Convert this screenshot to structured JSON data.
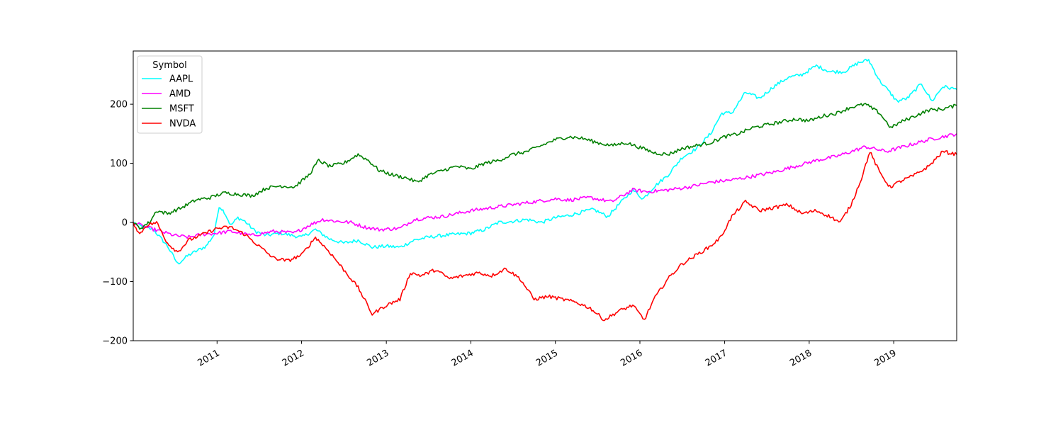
{
  "chart_data": {
    "type": "line",
    "title": "",
    "xlabel": "",
    "ylabel": "",
    "xlim": [
      "2010-01-04",
      "2019-09-30"
    ],
    "ylim": [
      -200,
      290
    ],
    "x_ticks": [
      {
        "date": "2011-01-01",
        "label": "2011"
      },
      {
        "date": "2012-01-01",
        "label": "2012"
      },
      {
        "date": "2013-01-01",
        "label": "2013"
      },
      {
        "date": "2014-01-01",
        "label": "2014"
      },
      {
        "date": "2015-01-01",
        "label": "2015"
      },
      {
        "date": "2016-01-01",
        "label": "2016"
      },
      {
        "date": "2017-01-01",
        "label": "2017"
      },
      {
        "date": "2018-01-01",
        "label": "2018"
      },
      {
        "date": "2019-01-01",
        "label": "2019"
      }
    ],
    "y_ticks": [
      {
        "value": -200,
        "label": "−200"
      },
      {
        "value": -100,
        "label": "−100"
      },
      {
        "value": 0,
        "label": "0"
      },
      {
        "value": 100,
        "label": "100"
      },
      {
        "value": 200,
        "label": "200"
      }
    ],
    "grid": false,
    "legend": {
      "title": "Symbol",
      "placement": "upper-left"
    },
    "series": [
      {
        "name": "AAPL",
        "color": "#00ffff",
        "points": [
          [
            "2010-01-04",
            0
          ],
          [
            "2010-02-15",
            -8
          ],
          [
            "2010-04-01",
            -12
          ],
          [
            "2010-06-01",
            -40
          ],
          [
            "2010-07-15",
            -70
          ],
          [
            "2010-09-01",
            -55
          ],
          [
            "2010-11-15",
            -40
          ],
          [
            "2010-12-20",
            -20
          ],
          [
            "2011-01-10",
            28
          ],
          [
            "2011-02-01",
            18
          ],
          [
            "2011-03-01",
            -5
          ],
          [
            "2011-04-01",
            8
          ],
          [
            "2011-05-01",
            2
          ],
          [
            "2011-06-15",
            -15
          ],
          [
            "2011-08-01",
            -22
          ],
          [
            "2011-10-01",
            -18
          ],
          [
            "2012-01-01",
            -25
          ],
          [
            "2012-03-01",
            -12
          ],
          [
            "2012-05-01",
            -28
          ],
          [
            "2012-07-01",
            -35
          ],
          [
            "2012-09-01",
            -30
          ],
          [
            "2012-11-01",
            -42
          ],
          [
            "2013-01-01",
            -40
          ],
          [
            "2013-03-01",
            -42
          ],
          [
            "2013-05-01",
            -30
          ],
          [
            "2013-07-01",
            -25
          ],
          [
            "2013-09-01",
            -22
          ],
          [
            "2013-11-01",
            -20
          ],
          [
            "2014-01-01",
            -18
          ],
          [
            "2014-03-01",
            -12
          ],
          [
            "2014-05-01",
            0
          ],
          [
            "2014-07-01",
            2
          ],
          [
            "2014-09-01",
            5
          ],
          [
            "2014-11-01",
            0
          ],
          [
            "2015-01-01",
            8
          ],
          [
            "2015-03-01",
            12
          ],
          [
            "2015-05-01",
            18
          ],
          [
            "2015-06-15",
            22
          ],
          [
            "2015-08-15",
            10
          ],
          [
            "2015-10-01",
            30
          ],
          [
            "2015-12-01",
            55
          ],
          [
            "2016-01-15",
            40
          ],
          [
            "2016-03-01",
            60
          ],
          [
            "2016-05-01",
            80
          ],
          [
            "2016-07-01",
            110
          ],
          [
            "2016-09-01",
            125
          ],
          [
            "2016-11-01",
            150
          ],
          [
            "2016-12-20",
            185
          ],
          [
            "2017-02-01",
            185
          ],
          [
            "2017-04-01",
            220
          ],
          [
            "2017-06-01",
            210
          ],
          [
            "2017-08-01",
            230
          ],
          [
            "2017-10-01",
            245
          ],
          [
            "2017-12-01",
            250
          ],
          [
            "2018-02-01",
            265
          ],
          [
            "2018-04-01",
            255
          ],
          [
            "2018-06-01",
            255
          ],
          [
            "2018-08-01",
            270
          ],
          [
            "2018-09-15",
            275
          ],
          [
            "2018-11-01",
            240
          ],
          [
            "2018-12-15",
            220
          ],
          [
            "2019-01-15",
            205
          ],
          [
            "2019-03-01",
            210
          ],
          [
            "2019-05-01",
            235
          ],
          [
            "2019-06-15",
            205
          ],
          [
            "2019-08-01",
            230
          ],
          [
            "2019-09-30",
            225
          ]
        ]
      },
      {
        "name": "AMD",
        "color": "#ff00ff",
        "points": [
          [
            "2010-01-04",
            0
          ],
          [
            "2010-03-01",
            -8
          ],
          [
            "2010-05-01",
            -15
          ],
          [
            "2010-07-01",
            -22
          ],
          [
            "2010-09-01",
            -25
          ],
          [
            "2010-11-01",
            -20
          ],
          [
            "2011-01-01",
            -18
          ],
          [
            "2011-03-01",
            -15
          ],
          [
            "2011-06-01",
            -22
          ],
          [
            "2011-09-01",
            -15
          ],
          [
            "2011-12-01",
            -18
          ],
          [
            "2012-02-01",
            -5
          ],
          [
            "2012-04-01",
            5
          ],
          [
            "2012-06-01",
            2
          ],
          [
            "2012-08-01",
            0
          ],
          [
            "2012-10-01",
            -8
          ],
          [
            "2012-12-01",
            -12
          ],
          [
            "2013-03-01",
            -10
          ],
          [
            "2013-05-01",
            5
          ],
          [
            "2013-07-01",
            8
          ],
          [
            "2013-09-01",
            10
          ],
          [
            "2013-11-01",
            15
          ],
          [
            "2014-01-01",
            20
          ],
          [
            "2014-04-01",
            25
          ],
          [
            "2014-07-01",
            30
          ],
          [
            "2014-10-01",
            35
          ],
          [
            "2015-01-01",
            40
          ],
          [
            "2015-03-01",
            38
          ],
          [
            "2015-06-01",
            42
          ],
          [
            "2015-09-01",
            35
          ],
          [
            "2015-12-01",
            55
          ],
          [
            "2016-02-01",
            52
          ],
          [
            "2016-05-01",
            55
          ],
          [
            "2016-08-01",
            60
          ],
          [
            "2016-11-01",
            68
          ],
          [
            "2017-02-01",
            72
          ],
          [
            "2017-05-01",
            78
          ],
          [
            "2017-08-01",
            85
          ],
          [
            "2017-11-01",
            95
          ],
          [
            "2018-02-01",
            105
          ],
          [
            "2018-05-01",
            112
          ],
          [
            "2018-09-01",
            128
          ],
          [
            "2018-12-01",
            120
          ],
          [
            "2019-03-01",
            130
          ],
          [
            "2019-06-01",
            140
          ],
          [
            "2019-09-30",
            150
          ]
        ]
      },
      {
        "name": "MSFT",
        "color": "#008000",
        "points": [
          [
            "2010-01-04",
            0
          ],
          [
            "2010-02-01",
            -10
          ],
          [
            "2010-03-15",
            0
          ],
          [
            "2010-04-15",
            20
          ],
          [
            "2010-06-01",
            15
          ],
          [
            "2010-08-01",
            25
          ],
          [
            "2010-10-01",
            38
          ],
          [
            "2010-12-01",
            42
          ],
          [
            "2011-02-01",
            50
          ],
          [
            "2011-04-01",
            48
          ],
          [
            "2011-06-01",
            45
          ],
          [
            "2011-08-01",
            58
          ],
          [
            "2011-10-01",
            62
          ],
          [
            "2011-12-01",
            60
          ],
          [
            "2012-02-01",
            80
          ],
          [
            "2012-03-15",
            105
          ],
          [
            "2012-05-01",
            95
          ],
          [
            "2012-07-01",
            100
          ],
          [
            "2012-09-01",
            115
          ],
          [
            "2012-10-15",
            105
          ],
          [
            "2012-12-01",
            88
          ],
          [
            "2013-02-01",
            80
          ],
          [
            "2013-04-01",
            75
          ],
          [
            "2013-05-15",
            68
          ],
          [
            "2013-07-01",
            80
          ],
          [
            "2013-09-01",
            88
          ],
          [
            "2013-11-01",
            95
          ],
          [
            "2014-01-01",
            90
          ],
          [
            "2014-03-01",
            100
          ],
          [
            "2014-05-01",
            105
          ],
          [
            "2014-07-01",
            115
          ],
          [
            "2014-09-01",
            120
          ],
          [
            "2014-11-01",
            130
          ],
          [
            "2015-01-01",
            140
          ],
          [
            "2015-03-01",
            145
          ],
          [
            "2015-05-01",
            142
          ],
          [
            "2015-07-01",
            135
          ],
          [
            "2015-09-01",
            130
          ],
          [
            "2015-11-01",
            135
          ],
          [
            "2016-01-15",
            125
          ],
          [
            "2016-03-01",
            118
          ],
          [
            "2016-05-01",
            115
          ],
          [
            "2016-07-01",
            125
          ],
          [
            "2016-09-01",
            130
          ],
          [
            "2016-11-01",
            135
          ],
          [
            "2017-01-01",
            145
          ],
          [
            "2017-03-01",
            150
          ],
          [
            "2017-05-01",
            160
          ],
          [
            "2017-07-01",
            165
          ],
          [
            "2017-09-01",
            170
          ],
          [
            "2017-11-01",
            175
          ],
          [
            "2018-01-01",
            172
          ],
          [
            "2018-03-01",
            180
          ],
          [
            "2018-05-01",
            185
          ],
          [
            "2018-07-01",
            195
          ],
          [
            "2018-09-01",
            200
          ],
          [
            "2018-11-01",
            185
          ],
          [
            "2018-12-20",
            160
          ],
          [
            "2019-02-01",
            170
          ],
          [
            "2019-04-01",
            180
          ],
          [
            "2019-06-01",
            190
          ],
          [
            "2019-08-01",
            192
          ],
          [
            "2019-09-30",
            198
          ]
        ]
      },
      {
        "name": "NVDA",
        "color": "#ff0000",
        "points": [
          [
            "2010-01-04",
            0
          ],
          [
            "2010-02-01",
            -20
          ],
          [
            "2010-03-01",
            -5
          ],
          [
            "2010-04-15",
            0
          ],
          [
            "2010-06-01",
            -35
          ],
          [
            "2010-07-15",
            -50
          ],
          [
            "2010-09-01",
            -30
          ],
          [
            "2010-11-01",
            -20
          ],
          [
            "2011-01-01",
            -10
          ],
          [
            "2011-03-01",
            -8
          ],
          [
            "2011-05-01",
            -20
          ],
          [
            "2011-07-01",
            -40
          ],
          [
            "2011-09-01",
            -60
          ],
          [
            "2011-11-01",
            -65
          ],
          [
            "2012-01-01",
            -55
          ],
          [
            "2012-03-01",
            -25
          ],
          [
            "2012-05-01",
            -50
          ],
          [
            "2012-07-01",
            -80
          ],
          [
            "2012-09-01",
            -110
          ],
          [
            "2012-11-01",
            -155
          ],
          [
            "2013-01-01",
            -140
          ],
          [
            "2013-03-01",
            -130
          ],
          [
            "2013-04-15",
            -85
          ],
          [
            "2013-06-01",
            -90
          ],
          [
            "2013-08-01",
            -80
          ],
          [
            "2013-10-01",
            -95
          ],
          [
            "2013-12-01",
            -90
          ],
          [
            "2014-02-01",
            -85
          ],
          [
            "2014-04-01",
            -90
          ],
          [
            "2014-06-01",
            -78
          ],
          [
            "2014-08-01",
            -95
          ],
          [
            "2014-10-01",
            -130
          ],
          [
            "2014-12-01",
            -125
          ],
          [
            "2015-02-01",
            -130
          ],
          [
            "2015-04-01",
            -135
          ],
          [
            "2015-06-01",
            -145
          ],
          [
            "2015-08-01",
            -165
          ],
          [
            "2015-10-01",
            -150
          ],
          [
            "2015-12-01",
            -140
          ],
          [
            "2016-01-20",
            -165
          ],
          [
            "2016-03-01",
            -130
          ],
          [
            "2016-05-01",
            -95
          ],
          [
            "2016-07-01",
            -70
          ],
          [
            "2016-09-01",
            -55
          ],
          [
            "2016-11-01",
            -40
          ],
          [
            "2016-12-15",
            -25
          ],
          [
            "2017-02-01",
            10
          ],
          [
            "2017-04-01",
            35
          ],
          [
            "2017-06-01",
            20
          ],
          [
            "2017-08-01",
            25
          ],
          [
            "2017-10-01",
            30
          ],
          [
            "2017-12-01",
            15
          ],
          [
            "2018-02-01",
            20
          ],
          [
            "2018-04-01",
            10
          ],
          [
            "2018-05-15",
            0
          ],
          [
            "2018-07-01",
            30
          ],
          [
            "2018-08-15",
            75
          ],
          [
            "2018-09-20",
            120
          ],
          [
            "2018-11-01",
            85
          ],
          [
            "2018-12-15",
            60
          ],
          [
            "2019-02-01",
            70
          ],
          [
            "2019-04-01",
            80
          ],
          [
            "2019-06-01",
            95
          ],
          [
            "2019-08-01",
            120
          ],
          [
            "2019-09-30",
            115
          ]
        ]
      }
    ]
  }
}
